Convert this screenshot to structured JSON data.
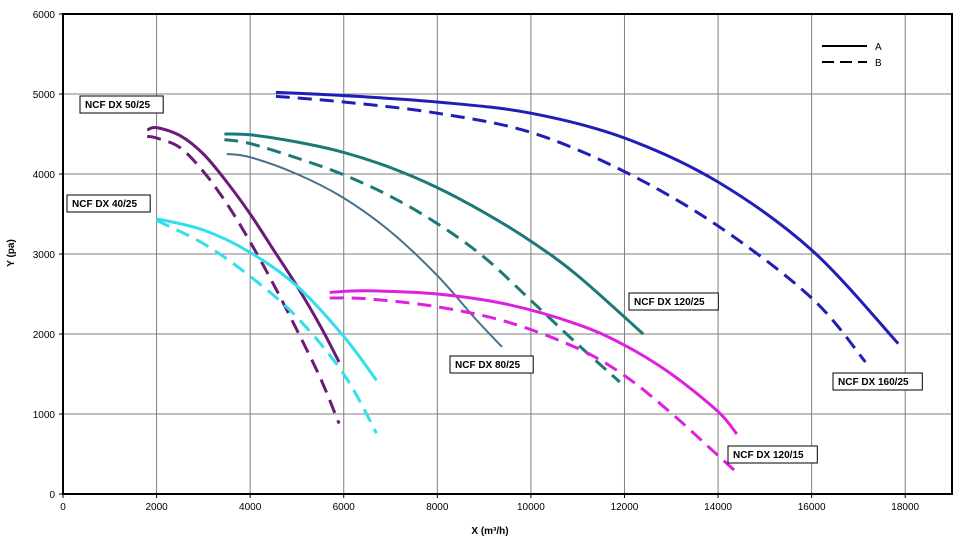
{
  "chart_data": {
    "type": "line",
    "xlabel": "X (m³/h)",
    "ylabel": "Y (pa)",
    "xlim": [
      0,
      19000
    ],
    "ylim": [
      0,
      6000
    ],
    "xticks": [
      0,
      2000,
      4000,
      6000,
      8000,
      10000,
      12000,
      14000,
      16000,
      18000
    ],
    "yticks": [
      0,
      1000,
      2000,
      3000,
      4000,
      5000,
      6000
    ],
    "xtick_labels": [
      "0",
      "2000",
      "4000",
      "6000",
      "8000",
      "10000",
      "12000",
      "14000",
      "16000",
      "18000"
    ],
    "ytick_labels": [
      "0",
      "1000",
      "2000",
      "3000",
      "4000",
      "5000",
      "6000"
    ],
    "grid": true,
    "legend": {
      "placement": "top-right",
      "entries": [
        {
          "label": "A",
          "style": "solid"
        },
        {
          "label": "B",
          "style": "dashed"
        }
      ]
    },
    "callouts": [
      {
        "text": "NCF DX 50/25",
        "series": "ncf-dx-50-25"
      },
      {
        "text": "NCF DX 40/25",
        "series": "ncf-dx-40-25"
      },
      {
        "text": "NCF DX 120/25",
        "series": "ncf-dx-120-25"
      },
      {
        "text": "NCF DX 80/25",
        "series": "ncf-dx-80-25"
      },
      {
        "text": "NCF DX 160/25",
        "series": "ncf-dx-160-25"
      },
      {
        "text": "NCF DX 120/15",
        "series": "ncf-dx-120-15"
      }
    ],
    "series": [
      {
        "id": "ncf-dx-160-25",
        "legend": "A",
        "color": "#1f1fb8",
        "style": "solid",
        "x": [
          4550,
          6000,
          8000,
          10000,
          12000,
          14000,
          16000,
          17850
        ],
        "y": [
          5020,
          4980,
          4900,
          4760,
          4450,
          3900,
          3050,
          1880
        ]
      },
      {
        "id": "ncf-dx-160-25",
        "legend": "B",
        "color": "#1f1fb8",
        "style": "dashed",
        "x": [
          4550,
          6000,
          8000,
          10000,
          12000,
          14000,
          16000,
          17150
        ],
        "y": [
          4970,
          4900,
          4760,
          4520,
          4030,
          3350,
          2450,
          1650
        ]
      },
      {
        "id": "ncf-dx-120-25",
        "legend": "A",
        "color": "#1a7a78",
        "style": "solid",
        "x": [
          3450,
          4000,
          5000,
          6000,
          7000,
          8000,
          9000,
          10000,
          11000,
          12400
        ],
        "y": [
          4500,
          4490,
          4400,
          4270,
          4080,
          3830,
          3520,
          3160,
          2730,
          2000
        ]
      },
      {
        "id": "ncf-dx-120-25",
        "legend": "B",
        "color": "#1a7a78",
        "style": "dashed",
        "x": [
          3450,
          4000,
          5000,
          6000,
          7000,
          8000,
          9000,
          10000,
          11000,
          11900
        ],
        "y": [
          4430,
          4380,
          4200,
          3990,
          3720,
          3380,
          2960,
          2420,
          1870,
          1400
        ]
      },
      {
        "id": "ncf-dx-80-25",
        "legend": "A",
        "color": "#46708c",
        "style": "solid",
        "x": [
          3500,
          4000,
          5000,
          6000,
          7000,
          8000,
          8800,
          9380
        ],
        "y": [
          4250,
          4210,
          4000,
          3700,
          3280,
          2730,
          2200,
          1840
        ]
      },
      {
        "id": "ncf-dx-120-15",
        "legend": "A",
        "color": "#e020e0",
        "style": "solid",
        "x": [
          5700,
          6500,
          8000,
          9500,
          11000,
          12000,
          13000,
          14000,
          14400
        ],
        "y": [
          2520,
          2540,
          2500,
          2370,
          2120,
          1860,
          1500,
          1030,
          750
        ]
      },
      {
        "id": "ncf-dx-120-15",
        "legend": "B",
        "color": "#e020e0",
        "style": "dashed",
        "x": [
          5700,
          6500,
          8000,
          9500,
          11000,
          12000,
          13000,
          14000,
          14400
        ],
        "y": [
          2450,
          2440,
          2340,
          2150,
          1820,
          1480,
          1010,
          480,
          270
        ]
      },
      {
        "id": "ncf-dx-50-25",
        "legend": "A",
        "color": "#6b1a78",
        "style": "solid",
        "x": [
          1800,
          2000,
          2500,
          3000,
          3500,
          4000,
          4500,
          5000,
          5500,
          5900
        ],
        "y": [
          4550,
          4580,
          4480,
          4250,
          3900,
          3500,
          3050,
          2600,
          2100,
          1650
        ]
      },
      {
        "id": "ncf-dx-50-25",
        "legend": "B",
        "color": "#6b1a78",
        "style": "dashed",
        "x": [
          1800,
          2000,
          2500,
          3000,
          3500,
          4000,
          4500,
          5000,
          5500,
          5900
        ],
        "y": [
          4470,
          4450,
          4330,
          4030,
          3630,
          3150,
          2620,
          2050,
          1450,
          880
        ]
      },
      {
        "id": "ncf-dx-40-25",
        "legend": "A",
        "color": "#30e0ec",
        "style": "solid",
        "x": [
          2000,
          3000,
          4000,
          5000,
          6000,
          6700
        ],
        "y": [
          3440,
          3300,
          3020,
          2600,
          1970,
          1420
        ]
      },
      {
        "id": "ncf-dx-40-25",
        "legend": "B",
        "color": "#30e0ec",
        "style": "dashed",
        "x": [
          2000,
          3000,
          4000,
          5000,
          6000,
          6700
        ],
        "y": [
          3420,
          3130,
          2720,
          2210,
          1500,
          760
        ]
      }
    ]
  }
}
